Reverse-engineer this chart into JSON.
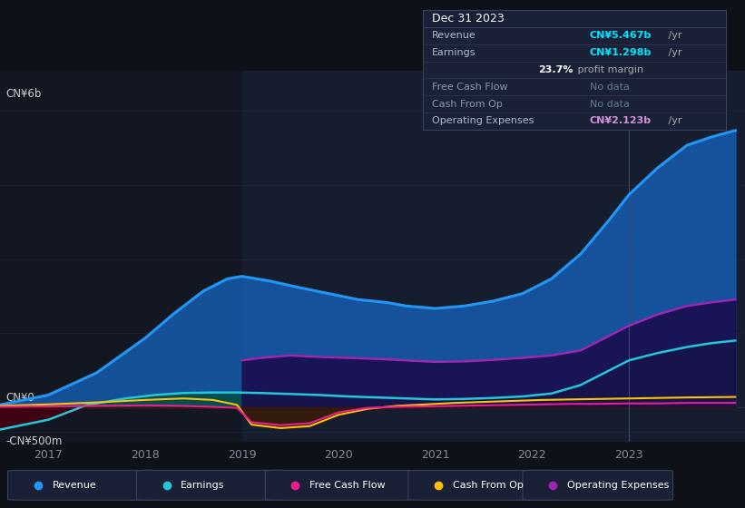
{
  "bg_color": "#0e1117",
  "chart_bg": "#131722",
  "xlim_start": 2016.5,
  "xlim_end": 2024.2,
  "ylim_min": -700000000.0,
  "ylim_max": 6800000000.0,
  "x_years": [
    2017,
    2018,
    2019,
    2020,
    2021,
    2022,
    2023
  ],
  "revenue_color": "#2196f3",
  "earnings_color": "#26c6da",
  "fcf_color": "#e91e8c",
  "cashfromop_color": "#ffc107",
  "opex_color": "#9c27b0",
  "revenue_fill": "#1565c0",
  "earnings_fill": "#00695c",
  "opex_fill": "#311b92",
  "legend_items": [
    "Revenue",
    "Earnings",
    "Free Cash Flow",
    "Cash From Op",
    "Operating Expenses"
  ],
  "legend_colors": [
    "#2196f3",
    "#26c6da",
    "#e91e8c",
    "#ffc107",
    "#9c27b0"
  ],
  "revenue_x": [
    2016.5,
    2017.0,
    2017.5,
    2018.0,
    2018.3,
    2018.6,
    2018.85,
    2019.0,
    2019.3,
    2019.6,
    2019.9,
    2020.2,
    2020.5,
    2020.7,
    2021.0,
    2021.3,
    2021.6,
    2021.9,
    2022.2,
    2022.5,
    2022.8,
    2023.0,
    2023.3,
    2023.6,
    2023.85,
    2024.1
  ],
  "revenue_y": [
    50000000.0,
    250000000.0,
    700000000.0,
    1400000000.0,
    1900000000.0,
    2350000000.0,
    2600000000.0,
    2650000000.0,
    2550000000.0,
    2420000000.0,
    2300000000.0,
    2180000000.0,
    2120000000.0,
    2050000000.0,
    2000000000.0,
    2050000000.0,
    2150000000.0,
    2300000000.0,
    2600000000.0,
    3100000000.0,
    3800000000.0,
    4300000000.0,
    4850000000.0,
    5300000000.0,
    5467000000.0,
    5600000000.0
  ],
  "earnings_x": [
    2016.5,
    2017.0,
    2017.4,
    2017.8,
    2018.1,
    2018.4,
    2018.7,
    2018.95,
    2019.2,
    2019.5,
    2019.8,
    2020.1,
    2020.4,
    2020.7,
    2021.0,
    2021.3,
    2021.6,
    2021.9,
    2022.2,
    2022.5,
    2022.8,
    2023.0,
    2023.3,
    2023.6,
    2023.85,
    2024.1
  ],
  "earnings_y": [
    -450000000.0,
    -250000000.0,
    50000000.0,
    180000000.0,
    250000000.0,
    290000000.0,
    300000000.0,
    300000000.0,
    290000000.0,
    270000000.0,
    250000000.0,
    220000000.0,
    200000000.0,
    180000000.0,
    160000000.0,
    170000000.0,
    190000000.0,
    220000000.0,
    280000000.0,
    450000000.0,
    750000000.0,
    950000000.0,
    1100000000.0,
    1220000000.0,
    1298000000.0,
    1350000000.0
  ],
  "opex_x": [
    2019.0,
    2019.2,
    2019.5,
    2019.8,
    2020.1,
    2020.4,
    2020.7,
    2021.0,
    2021.3,
    2021.6,
    2021.9,
    2022.2,
    2022.5,
    2022.8,
    2023.0,
    2023.3,
    2023.6,
    2023.85,
    2024.1
  ],
  "opex_y": [
    950000000.0,
    1000000000.0,
    1050000000.0,
    1020000000.0,
    1000000000.0,
    980000000.0,
    950000000.0,
    920000000.0,
    930000000.0,
    960000000.0,
    1000000000.0,
    1050000000.0,
    1150000000.0,
    1450000000.0,
    1650000000.0,
    1880000000.0,
    2050000000.0,
    2123000000.0,
    2180000000.0
  ],
  "cashfromop_x": [
    2016.5,
    2017.0,
    2017.5,
    2018.0,
    2018.4,
    2018.7,
    2018.95,
    2019.1,
    2019.4,
    2019.7,
    2020.0,
    2020.3,
    2020.6,
    2020.9,
    2021.2,
    2021.5,
    2021.8,
    2022.1,
    2022.4,
    2022.7,
    2023.0,
    2023.3,
    2023.6,
    2023.85,
    2024.1
  ],
  "cashfromop_y": [
    30000000.0,
    60000000.0,
    100000000.0,
    150000000.0,
    180000000.0,
    150000000.0,
    50000000.0,
    -350000000.0,
    -420000000.0,
    -380000000.0,
    -150000000.0,
    -30000000.0,
    30000000.0,
    60000000.0,
    90000000.0,
    110000000.0,
    130000000.0,
    150000000.0,
    160000000.0,
    170000000.0,
    180000000.0,
    190000000.0,
    200000000.0,
    205000000.0,
    210000000.0
  ],
  "fcf_x": [
    2016.5,
    2017.0,
    2017.5,
    2018.0,
    2018.4,
    2018.7,
    2018.95,
    2019.1,
    2019.4,
    2019.7,
    2020.0,
    2020.3,
    2020.6,
    2020.9,
    2021.2,
    2021.5,
    2021.8,
    2022.1,
    2022.4,
    2022.7,
    2023.0,
    2023.3,
    2023.6,
    2023.85,
    2024.1
  ],
  "fcf_y": [
    10000000.0,
    20000000.0,
    30000000.0,
    40000000.0,
    30000000.0,
    10000000.0,
    -10000000.0,
    -300000000.0,
    -360000000.0,
    -320000000.0,
    -100000000.0,
    -10000000.0,
    10000000.0,
    20000000.0,
    30000000.0,
    40000000.0,
    50000000.0,
    60000000.0,
    70000000.0,
    70000000.0,
    80000000.0,
    80000000.0,
    90000000.0,
    90000000.0,
    90000000.0
  ],
  "tooltip": {
    "date": "Dec 31 2023",
    "rows": [
      {
        "label": "Revenue",
        "value": "CN¥5.467b",
        "suffix": " /yr",
        "color": "#00e5ff",
        "nodata": false
      },
      {
        "label": "Earnings",
        "value": "CN¥1.298b",
        "suffix": " /yr",
        "color": "#00e5ff",
        "nodata": false
      },
      {
        "label": "",
        "value": "23.7%",
        "suffix": " profit margin",
        "color": "white",
        "nodata": false
      },
      {
        "label": "Free Cash Flow",
        "value": "No data",
        "suffix": "",
        "color": "#607d8b",
        "nodata": true
      },
      {
        "label": "Cash From Op",
        "value": "No data",
        "suffix": "",
        "color": "#607d8b",
        "nodata": true
      },
      {
        "label": "Operating Expenses",
        "value": "CN¥2.123b",
        "suffix": " /yr",
        "color": "#ce93d8",
        "nodata": false
      }
    ]
  }
}
